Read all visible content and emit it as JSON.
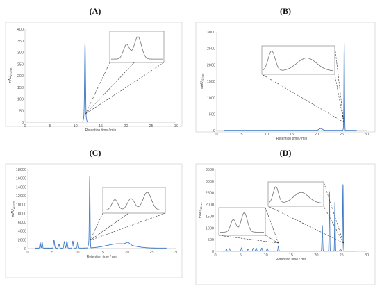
{
  "figure_labels": [
    "(A)",
    "(B)",
    "(C)",
    "(D)"
  ],
  "colors": {
    "trace": "#3a78c2",
    "inset_trace": "#707070",
    "axis": "#bfbfbf",
    "frame": "#d0d0d0",
    "leader": "#333333"
  },
  "chart_data": [
    {
      "type": "line",
      "label": "(A)",
      "xlabel": "Retention time / min",
      "ylabel": "mAU",
      "ylabel_sub": "210 nm",
      "xlim": [
        0,
        30
      ],
      "ylim": [
        0,
        400
      ],
      "xticks": [
        "0",
        "5",
        "10",
        "15",
        "20",
        "25",
        "30"
      ],
      "yticks": [
        "0",
        "50",
        "100",
        "150",
        "200",
        "250",
        "300",
        "350",
        "400"
      ],
      "baseline": 1.5,
      "peaks": [
        {
          "x": 11.9,
          "y": 335,
          "w": 0.09
        },
        {
          "x": 11.7,
          "y": 18,
          "w": 0.12
        },
        {
          "x": 12.15,
          "y": 10,
          "w": 0.1
        }
      ],
      "inset_zoom_x": 12.0,
      "inset_peaks": [
        [
          0.3,
          0.55,
          0.06
        ],
        [
          0.52,
          0.85,
          0.07
        ]
      ]
    },
    {
      "type": "line",
      "label": "(B)",
      "xlabel": "Retention time / min",
      "ylabel": "mAU",
      "ylabel_sub": "210 nm",
      "xlim": [
        0,
        30
      ],
      "ylim": [
        0,
        3000
      ],
      "xticks": [
        "0",
        "5",
        "10",
        "15",
        "20",
        "25",
        "30"
      ],
      "yticks": [
        "0",
        "500",
        "1000",
        "1500",
        "2000",
        "2500",
        "3000"
      ],
      "baseline": 5,
      "peaks": [
        {
          "x": 20.8,
          "y": 55,
          "w": 0.35
        },
        {
          "x": 25.5,
          "y": 2650,
          "w": 0.06
        },
        {
          "x": 25.35,
          "y": 30,
          "w": 0.1
        }
      ],
      "inset_zoom_x": 25.4,
      "inset_peaks": [
        [
          0.12,
          0.85,
          0.05
        ],
        [
          0.62,
          0.55,
          0.14
        ]
      ]
    },
    {
      "type": "line",
      "label": "(C)",
      "xlabel": "Retention time / min",
      "ylabel": "mAU",
      "ylabel_sub": "210 nm",
      "xlim": [
        0,
        30
      ],
      "ylim": [
        0,
        18000
      ],
      "xticks": [
        "0",
        "5",
        "10",
        "15",
        "20",
        "25",
        "30"
      ],
      "yticks": [
        "0",
        "2000",
        "4000",
        "6000",
        "8000",
        "10000",
        "12000",
        "14000",
        "16000",
        "18000"
      ],
      "baseline": 100,
      "peaks": [
        {
          "x": 2.5,
          "y": 1300,
          "w": 0.08
        },
        {
          "x": 2.9,
          "y": 1400,
          "w": 0.08
        },
        {
          "x": 5.3,
          "y": 1800,
          "w": 0.1
        },
        {
          "x": 6.3,
          "y": 900,
          "w": 0.1
        },
        {
          "x": 7.4,
          "y": 1500,
          "w": 0.1
        },
        {
          "x": 7.9,
          "y": 1600,
          "w": 0.1
        },
        {
          "x": 9.1,
          "y": 1600,
          "w": 0.1
        },
        {
          "x": 10.1,
          "y": 1400,
          "w": 0.1
        },
        {
          "x": 12.5,
          "y": 16200,
          "w": 0.07
        },
        {
          "x": 12.3,
          "y": 900,
          "w": 0.1
        },
        {
          "x": 18.5,
          "y": 1000,
          "w": 2.5
        },
        {
          "x": 20.2,
          "y": 500,
          "w": 0.4
        }
      ],
      "inset_zoom_x": 12.6,
      "inset_peaks": [
        [
          0.18,
          0.5,
          0.05
        ],
        [
          0.45,
          0.55,
          0.06
        ],
        [
          0.72,
          0.85,
          0.07
        ]
      ]
    },
    {
      "type": "line",
      "label": "(D)",
      "xlabel": "Retention time / min",
      "ylabel": "mAU",
      "ylabel_sub": "210 nm",
      "xlim": [
        0,
        30
      ],
      "ylim": [
        0,
        3500
      ],
      "xticks": [
        "0",
        "5",
        "10",
        "15",
        "20",
        "25",
        "30"
      ],
      "yticks": [
        "0",
        "500",
        "1000",
        "1500",
        "2000",
        "2500",
        "3000",
        "3500"
      ],
      "baseline": 10,
      "peaks": [
        {
          "x": 2.2,
          "y": 90,
          "w": 0.08
        },
        {
          "x": 2.8,
          "y": 110,
          "w": 0.08
        },
        {
          "x": 5.2,
          "y": 140,
          "w": 0.1
        },
        {
          "x": 6.5,
          "y": 90,
          "w": 0.1
        },
        {
          "x": 7.5,
          "y": 120,
          "w": 0.1
        },
        {
          "x": 8.1,
          "y": 130,
          "w": 0.1
        },
        {
          "x": 9.2,
          "y": 130,
          "w": 0.1
        },
        {
          "x": 10.3,
          "y": 110,
          "w": 0.1
        },
        {
          "x": 12.5,
          "y": 220,
          "w": 0.08
        },
        {
          "x": 21.2,
          "y": 1100,
          "w": 0.07
        },
        {
          "x": 22.6,
          "y": 2550,
          "w": 0.06
        },
        {
          "x": 23.7,
          "y": 2100,
          "w": 0.06
        },
        {
          "x": 25.3,
          "y": 2850,
          "w": 0.06
        },
        {
          "x": 24.8,
          "y": 60,
          "w": 0.15
        }
      ],
      "insets": [
        {
          "zoom_x": 12.5,
          "peaks": [
            [
              0.3,
              0.55,
              0.06
            ],
            [
              0.55,
              0.85,
              0.07
            ]
          ]
        },
        {
          "zoom_x": 25.4,
          "peaks": [
            [
              0.12,
              0.85,
              0.05
            ],
            [
              0.6,
              0.55,
              0.14
            ]
          ]
        }
      ]
    }
  ]
}
